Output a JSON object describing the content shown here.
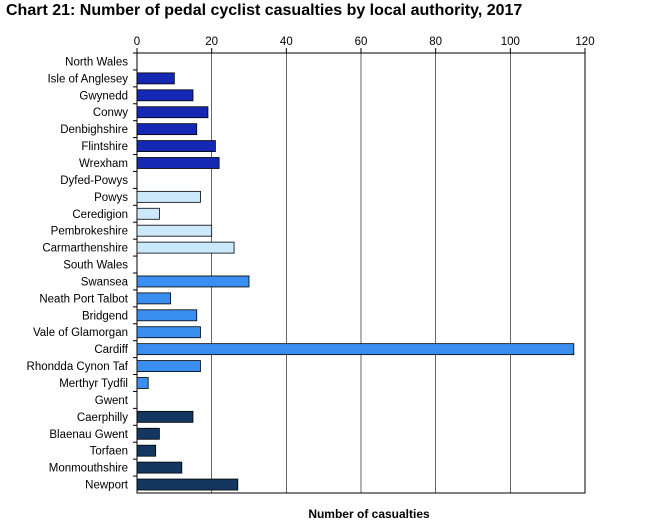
{
  "chart_data": {
    "type": "bar",
    "orientation": "horizontal",
    "title": "Chart 21: Number of pedal cyclist casualties by local authority, 2017",
    "xlabel": "Number of casualties",
    "ylabel": "",
    "xlim": [
      0,
      120
    ],
    "xticks": [
      0,
      20,
      40,
      60,
      80,
      100,
      120
    ],
    "x_axis_position": "top",
    "grid": "vertical",
    "categories": [
      "North Wales",
      "Isle of Anglesey",
      "Gwynedd",
      "Conwy",
      "Denbighshire",
      "Flintshire",
      "Wrexham",
      "Dyfed-Powys",
      "Powys",
      "Ceredigion",
      "Pembrokeshire",
      "Carmarthenshire",
      "South Wales",
      "Swansea",
      "Neath Port Talbot",
      "Bridgend",
      "Vale of Glamorgan",
      "Cardiff",
      "Rhondda Cynon Taf",
      "Merthyr Tydfil",
      "Gwent",
      "Caerphilly",
      "Blaenau Gwent",
      "Torfaen",
      "Monmouthshire",
      "Newport"
    ],
    "values": [
      null,
      10,
      15,
      19,
      16,
      21,
      22,
      null,
      17,
      6,
      20,
      26,
      null,
      30,
      9,
      16,
      17,
      117,
      17,
      3,
      null,
      15,
      6,
      5,
      12,
      27
    ],
    "groups": [
      "header",
      "north",
      "north",
      "north",
      "north",
      "north",
      "north",
      "header",
      "dyfed",
      "dyfed",
      "dyfed",
      "dyfed",
      "header",
      "south",
      "south",
      "south",
      "south",
      "south",
      "south",
      "south",
      "header",
      "gwent",
      "gwent",
      "gwent",
      "gwent",
      "gwent"
    ],
    "colors": {
      "north": "#1428b4",
      "dyfed": "#cce8fb",
      "south": "#3a8ef0",
      "gwent": "#143762"
    }
  }
}
